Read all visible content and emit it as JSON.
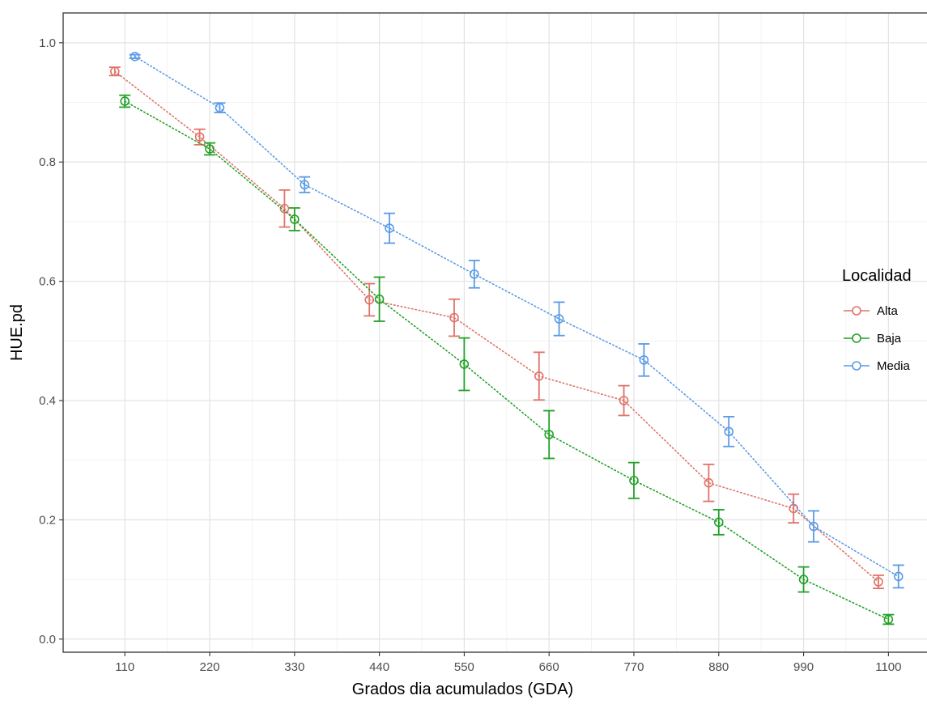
{
  "chart_data": {
    "type": "line",
    "xlabel": "Grados dia acumulados (GDA)",
    "ylabel": "HUE.pd",
    "x_ticks": [
      110,
      220,
      330,
      440,
      550,
      660,
      770,
      880,
      990,
      1100
    ],
    "x_tick_labels": [
      "110",
      "220",
      "330",
      "440",
      "550",
      "660",
      "770",
      "880",
      "990",
      "1100"
    ],
    "y_ticks": [
      0.0,
      0.2,
      0.4,
      0.6,
      0.8,
      1.0
    ],
    "y_tick_labels": [
      "0.0",
      "0.2",
      "0.4",
      "0.6",
      "0.8",
      "1.0"
    ],
    "xlim": [
      30,
      1150
    ],
    "ylim": [
      -0.022,
      1.05
    ],
    "grid": true,
    "legend": {
      "title": "Localidad",
      "position": "right"
    },
    "line_style": "dotted",
    "marker": "open-circle-with-errorbar",
    "series": [
      {
        "name": "Alta",
        "color": "#E0736A",
        "x": [
          110,
          220,
          330,
          440,
          550,
          660,
          770,
          880,
          990,
          1100
        ],
        "y": [
          0.952,
          0.842,
          0.722,
          0.569,
          0.539,
          0.441,
          0.4,
          0.262,
          0.219,
          0.096
        ],
        "err": [
          0.007,
          0.013,
          0.031,
          0.027,
          0.031,
          0.04,
          0.025,
          0.031,
          0.024,
          0.011
        ]
      },
      {
        "name": "Baja",
        "color": "#22A127",
        "x": [
          110,
          220,
          330,
          440,
          550,
          660,
          770,
          880,
          990,
          1100
        ],
        "y": [
          0.902,
          0.822,
          0.704,
          0.57,
          0.461,
          0.343,
          0.266,
          0.196,
          0.1,
          0.033
        ],
        "err": [
          0.01,
          0.01,
          0.019,
          0.037,
          0.044,
          0.04,
          0.03,
          0.021,
          0.021,
          0.008
        ]
      },
      {
        "name": "Media",
        "color": "#5A9BE6",
        "x": [
          110,
          220,
          330,
          440,
          550,
          660,
          770,
          880,
          990,
          1100
        ],
        "y": [
          0.977,
          0.891,
          0.762,
          0.689,
          0.612,
          0.537,
          0.468,
          0.348,
          0.189,
          0.105
        ],
        "err": [
          0.003,
          0.008,
          0.013,
          0.025,
          0.023,
          0.028,
          0.027,
          0.025,
          0.026,
          0.019
        ]
      }
    ]
  }
}
